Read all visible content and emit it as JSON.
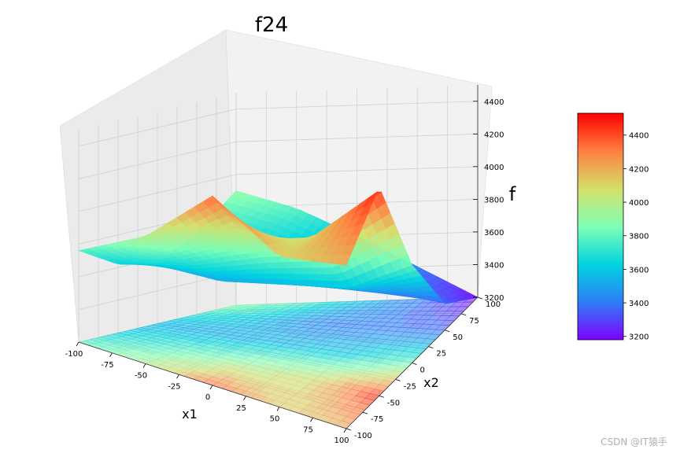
{
  "chart_data": {
    "type": "surface3d",
    "title": "f24",
    "xlabel": "x1",
    "ylabel": "x2",
    "zlabel": "f",
    "xlim": [
      -100,
      100
    ],
    "ylim": [
      -100,
      100
    ],
    "zlim": [
      3200,
      4500
    ],
    "x_ticks": [
      "-100",
      "-75",
      "-50",
      "-25",
      "0",
      "25",
      "50",
      "75",
      "100"
    ],
    "y_ticks": [
      "-100",
      "-75",
      "-50",
      "-25",
      "0",
      "25",
      "50",
      "75",
      "100"
    ],
    "z_ticks": [
      "3200",
      "3400",
      "3600",
      "3800",
      "4000",
      "4200",
      "4400"
    ],
    "colorbar_ticks": [
      "3200",
      "3400",
      "3600",
      "3800",
      "4000",
      "4200",
      "4400"
    ],
    "colorbar_range": [
      3180,
      4530
    ],
    "colormap": "rainbow",
    "contour_projection": "floor",
    "grid": true,
    "surface_samples": {
      "x": [
        -100,
        -50,
        0,
        50,
        100
      ],
      "y": [
        -100,
        -50,
        0,
        50,
        100
      ],
      "z": [
        [
          3760,
          3620,
          3560,
          3700,
          3900
        ],
        [
          3980,
          3760,
          3520,
          3600,
          3780
        ],
        [
          4360,
          3940,
          3560,
          3420,
          3600
        ],
        [
          4120,
          4080,
          3600,
          3400,
          3400
        ],
        [
          4200,
          4480,
          3800,
          3360,
          3200
        ]
      ]
    }
  },
  "colors": {
    "pane": "#f2f2f2",
    "pane_side": "#ebebeb",
    "grid": "#d0d0d0",
    "colormap_stops": [
      "#8000ff",
      "#2c7ef7",
      "#00d4e0",
      "#80ffb4",
      "#d4e06a",
      "#ff8040",
      "#ff0000"
    ]
  },
  "watermark": "CSDN @IT猿手"
}
